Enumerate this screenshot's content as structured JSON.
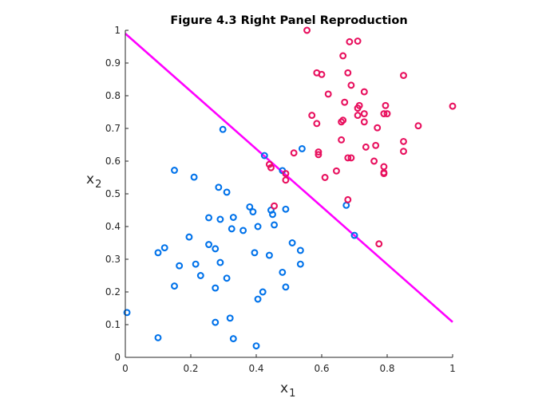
{
  "chart_data": {
    "type": "scatter",
    "title": "Figure 4.3 Right Panel Reproduction",
    "xlabel": {
      "main": "x",
      "sub": "1"
    },
    "ylabel": {
      "main": "x",
      "sub": "2"
    },
    "xlim": [
      0,
      1
    ],
    "ylim": [
      0,
      1
    ],
    "xticks": [
      0,
      0.2,
      0.4,
      0.6,
      0.8,
      1
    ],
    "yticks": [
      0,
      0.1,
      0.2,
      0.3,
      0.4,
      0.5,
      0.6,
      0.7,
      0.8,
      0.9,
      1
    ],
    "xtick_labels": [
      "0",
      "0.2",
      "0.4",
      "0.6",
      "0.8",
      "1"
    ],
    "ytick_labels": [
      "0",
      "0.1",
      "0.2",
      "0.3",
      "0.4",
      "0.5",
      "0.6",
      "0.7",
      "0.8",
      "0.9",
      "1"
    ],
    "grid": false,
    "box": false,
    "series": [
      {
        "color": "#0072EA",
        "marker": "o",
        "points": [
          [
            0.005,
            0.137
          ],
          [
            0.1,
            0.06
          ],
          [
            0.1,
            0.32
          ],
          [
            0.12,
            0.335
          ],
          [
            0.15,
            0.572
          ],
          [
            0.15,
            0.218
          ],
          [
            0.165,
            0.28
          ],
          [
            0.195,
            0.368
          ],
          [
            0.21,
            0.551
          ],
          [
            0.215,
            0.285
          ],
          [
            0.23,
            0.25
          ],
          [
            0.255,
            0.427
          ],
          [
            0.255,
            0.345
          ],
          [
            0.275,
            0.332
          ],
          [
            0.275,
            0.212
          ],
          [
            0.275,
            0.107
          ],
          [
            0.285,
            0.52
          ],
          [
            0.29,
            0.29
          ],
          [
            0.29,
            0.422
          ],
          [
            0.298,
            0.697
          ],
          [
            0.31,
            0.505
          ],
          [
            0.31,
            0.242
          ],
          [
            0.32,
            0.12
          ],
          [
            0.325,
            0.393
          ],
          [
            0.33,
            0.428
          ],
          [
            0.33,
            0.057
          ],
          [
            0.36,
            0.388
          ],
          [
            0.38,
            0.46
          ],
          [
            0.39,
            0.445
          ],
          [
            0.395,
            0.32
          ],
          [
            0.4,
            0.035
          ],
          [
            0.405,
            0.178
          ],
          [
            0.405,
            0.4
          ],
          [
            0.42,
            0.2
          ],
          [
            0.425,
            0.617
          ],
          [
            0.44,
            0.312
          ],
          [
            0.445,
            0.45
          ],
          [
            0.45,
            0.437
          ],
          [
            0.455,
            0.405
          ],
          [
            0.48,
            0.26
          ],
          [
            0.48,
            0.571
          ],
          [
            0.49,
            0.453
          ],
          [
            0.49,
            0.215
          ],
          [
            0.51,
            0.35
          ],
          [
            0.535,
            0.285
          ],
          [
            0.535,
            0.327
          ],
          [
            0.54,
            0.638
          ],
          [
            0.675,
            0.465
          ],
          [
            0.7,
            0.373
          ]
        ]
      },
      {
        "color": "#E8105E",
        "marker": "o",
        "points": [
          [
            0.44,
            0.59
          ],
          [
            0.445,
            0.58
          ],
          [
            0.455,
            0.463
          ],
          [
            0.49,
            0.542
          ],
          [
            0.49,
            0.562
          ],
          [
            0.515,
            0.625
          ],
          [
            0.555,
            1.0
          ],
          [
            0.57,
            0.74
          ],
          [
            0.585,
            0.87
          ],
          [
            0.585,
            0.715
          ],
          [
            0.59,
            0.628
          ],
          [
            0.59,
            0.62
          ],
          [
            0.6,
            0.865
          ],
          [
            0.61,
            0.55
          ],
          [
            0.62,
            0.805
          ],
          [
            0.645,
            0.57
          ],
          [
            0.66,
            0.665
          ],
          [
            0.66,
            0.72
          ],
          [
            0.665,
            0.725
          ],
          [
            0.665,
            0.922
          ],
          [
            0.67,
            0.78
          ],
          [
            0.68,
            0.61
          ],
          [
            0.68,
            0.482
          ],
          [
            0.685,
            0.965
          ],
          [
            0.68,
            0.87
          ],
          [
            0.69,
            0.61
          ],
          [
            0.69,
            0.832
          ],
          [
            0.71,
            0.74
          ],
          [
            0.71,
            0.762
          ],
          [
            0.71,
            0.967
          ],
          [
            0.715,
            0.77
          ],
          [
            0.73,
            0.812
          ],
          [
            0.73,
            0.745
          ],
          [
            0.73,
            0.72
          ],
          [
            0.735,
            0.643
          ],
          [
            0.76,
            0.6
          ],
          [
            0.765,
            0.648
          ],
          [
            0.77,
            0.702
          ],
          [
            0.775,
            0.347
          ],
          [
            0.79,
            0.583
          ],
          [
            0.79,
            0.565
          ],
          [
            0.79,
            0.562
          ],
          [
            0.79,
            0.745
          ],
          [
            0.795,
            0.77
          ],
          [
            0.8,
            0.745
          ],
          [
            0.85,
            0.66
          ],
          [
            0.85,
            0.63
          ],
          [
            0.85,
            0.862
          ],
          [
            0.895,
            0.708
          ],
          [
            1.0,
            0.768
          ]
        ]
      }
    ],
    "lines": [
      {
        "color": "#FF00FF",
        "x": [
          0,
          1
        ],
        "y": [
          0.99,
          0.108
        ]
      }
    ]
  }
}
